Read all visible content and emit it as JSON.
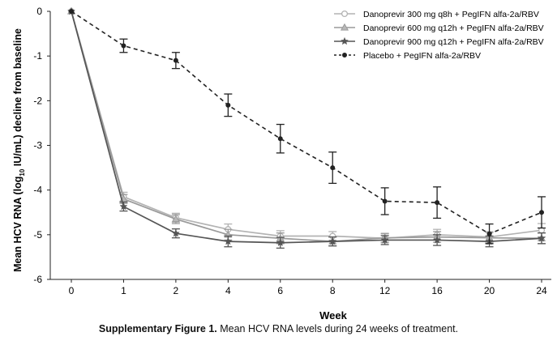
{
  "chart_data": {
    "type": "line",
    "title": "",
    "xlabel": "Week",
    "ylabel_prefix": "Mean HCV RNA (log",
    "ylabel_sub": "10",
    "ylabel_suffix": " IU/mL) decline from baseline",
    "categories": [
      "0",
      "1",
      "2",
      "4",
      "6",
      "8",
      "12",
      "16",
      "20",
      "24"
    ],
    "ylim": [
      -6,
      0
    ],
    "yticks": [
      0,
      -1,
      -2,
      -3,
      -4,
      -5,
      -6
    ],
    "legend_position": "top-right",
    "series": [
      {
        "name": "Danoprevir 300 mg q8h + PegIFN alfa-2a/RBV",
        "marker": "circle",
        "line": "solid",
        "color": "#b3b3b3",
        "marker_fill": "#ffffff",
        "values": [
          0,
          -4.15,
          -4.62,
          -4.88,
          -5.03,
          -5.03,
          -5.08,
          -5.0,
          -5.05,
          -4.9
        ],
        "error": [
          0,
          0.1,
          0.1,
          0.12,
          0.12,
          0.1,
          0.1,
          0.12,
          0.12,
          0.15
        ]
      },
      {
        "name": "Danoprevir 600 mg q12h + PegIFN alfa-2a/RBV",
        "marker": "triangle",
        "line": "solid",
        "color": "#9a9a9a",
        "marker_fill": "#b8b8b8",
        "values": [
          0,
          -4.2,
          -4.65,
          -5.0,
          -5.08,
          -5.15,
          -5.07,
          -5.05,
          -5.07,
          -5.08
        ],
        "error": [
          0,
          0.1,
          0.1,
          0.12,
          0.12,
          0.1,
          0.1,
          0.12,
          0.12,
          0.12
        ]
      },
      {
        "name": "Danoprevir 900 mg q12h + PegIFN alfa-2a/RBV",
        "marker": "star",
        "line": "solid",
        "color": "#555555",
        "marker_fill": "#555555",
        "values": [
          0,
          -4.37,
          -4.97,
          -5.15,
          -5.18,
          -5.15,
          -5.12,
          -5.12,
          -5.15,
          -5.08
        ],
        "error": [
          0,
          0.1,
          0.1,
          0.12,
          0.12,
          0.1,
          0.1,
          0.12,
          0.12,
          0.12
        ]
      },
      {
        "name": "Placebo + PegIFN alfa-2a/RBV",
        "marker": "dot",
        "line": "dashed",
        "color": "#222222",
        "marker_fill": "#222222",
        "values": [
          0,
          -0.77,
          -1.1,
          -2.1,
          -2.85,
          -3.5,
          -4.25,
          -4.28,
          -4.98,
          -4.5
        ],
        "error": [
          0,
          0.15,
          0.18,
          0.25,
          0.32,
          0.35,
          0.3,
          0.35,
          0.22,
          0.35
        ]
      }
    ]
  },
  "caption": {
    "label": "Supplementary Figure 1.",
    "text": " Mean HCV RNA levels during 24 weeks of treatment."
  }
}
